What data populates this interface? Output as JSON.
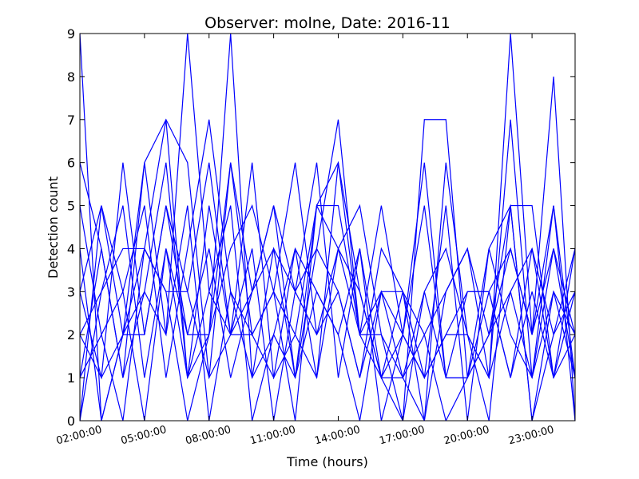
{
  "chart_data": {
    "type": "line",
    "title": "Observer: molne, Date: 2016-11",
    "xlabel": "Time (hours)",
    "ylabel": "Detection count",
    "xlim": [
      2,
      25
    ],
    "ylim": [
      0,
      9
    ],
    "x_ticks": [
      {
        "value": 2,
        "label": "02:00:00"
      },
      {
        "value": 5,
        "label": "05:00:00"
      },
      {
        "value": 8,
        "label": "08:00:00"
      },
      {
        "value": 11,
        "label": "11:00:00"
      },
      {
        "value": 14,
        "label": "14:00:00"
      },
      {
        "value": 17,
        "label": "17:00:00"
      },
      {
        "value": 20,
        "label": "20:00:00"
      },
      {
        "value": 23,
        "label": "23:00:00"
      }
    ],
    "y_ticks": [
      0,
      1,
      2,
      3,
      4,
      5,
      6,
      7,
      8,
      9
    ],
    "grid": false,
    "legend": "none",
    "line_color": "#0000ff",
    "x": [
      2,
      3,
      4,
      5,
      6,
      7,
      8,
      9,
      10,
      11,
      12,
      13,
      14,
      15,
      16,
      17,
      18,
      19,
      20,
      21,
      22,
      23,
      24,
      25
    ],
    "series": [
      {
        "values": [
          9,
          0,
          2,
          4,
          7,
          1,
          2,
          6,
          3,
          5,
          1,
          4,
          7,
          2,
          1,
          3,
          0,
          6,
          2,
          1,
          9,
          2,
          8,
          0
        ]
      },
      {
        "values": [
          6,
          4,
          1,
          6,
          7,
          6,
          1,
          2,
          2,
          1,
          4,
          1,
          6,
          3,
          1,
          0,
          7,
          7,
          1,
          4,
          5,
          0,
          3,
          2
        ]
      },
      {
        "values": [
          3,
          5,
          2,
          3,
          2,
          9,
          3,
          5,
          0,
          2,
          1,
          5,
          5,
          2,
          3,
          1,
          2,
          3,
          4,
          1,
          7,
          1,
          5,
          1
        ]
      },
      {
        "values": [
          0,
          3,
          4,
          4,
          3,
          3,
          6,
          2,
          4,
          0,
          3,
          6,
          1,
          4,
          0,
          2,
          5,
          1,
          1,
          2,
          3,
          4,
          2,
          4
        ]
      },
      {
        "values": [
          2,
          1,
          6,
          2,
          5,
          2,
          2,
          9,
          1,
          4,
          3,
          4,
          3,
          1,
          4,
          3,
          1,
          2,
          2,
          0,
          5,
          5,
          1,
          3
        ]
      },
      {
        "values": [
          5,
          2,
          3,
          5,
          1,
          4,
          7,
          3,
          2,
          3,
          6,
          2,
          4,
          5,
          2,
          1,
          3,
          1,
          3,
          3,
          4,
          2,
          5,
          0
        ]
      },
      {
        "values": [
          1,
          4,
          1,
          3,
          6,
          1,
          5,
          2,
          6,
          1,
          2,
          5,
          6,
          2,
          5,
          2,
          1,
          5,
          0,
          4,
          2,
          1,
          4,
          1
        ]
      },
      {
        "values": [
          2,
          3,
          5,
          1,
          4,
          2,
          4,
          1,
          3,
          5,
          3,
          2,
          3,
          1,
          3,
          3,
          2,
          0,
          1,
          3,
          1,
          3,
          1,
          2
        ]
      },
      {
        "values": [
          4,
          0,
          2,
          6,
          2,
          5,
          0,
          3,
          1,
          2,
          4,
          3,
          2,
          4,
          1,
          1,
          0,
          3,
          4,
          2,
          5,
          0,
          2,
          3
        ]
      },
      {
        "values": [
          1,
          2,
          0,
          4,
          3,
          0,
          2,
          4,
          5,
          3,
          0,
          5,
          4,
          2,
          2,
          0,
          3,
          4,
          2,
          1,
          3,
          1,
          3,
          1
        ]
      },
      {
        "values": [
          3,
          1,
          2,
          2,
          5,
          3,
          1,
          6,
          2,
          3,
          2,
          1,
          4,
          3,
          1,
          2,
          1,
          2,
          3,
          3,
          1,
          4,
          1,
          4
        ]
      },
      {
        "values": [
          0,
          5,
          3,
          0,
          4,
          1,
          3,
          2,
          3,
          4,
          1,
          3,
          2,
          0,
          3,
          2,
          6,
          1,
          1,
          2,
          4,
          2,
          4,
          2
        ]
      }
    ]
  }
}
